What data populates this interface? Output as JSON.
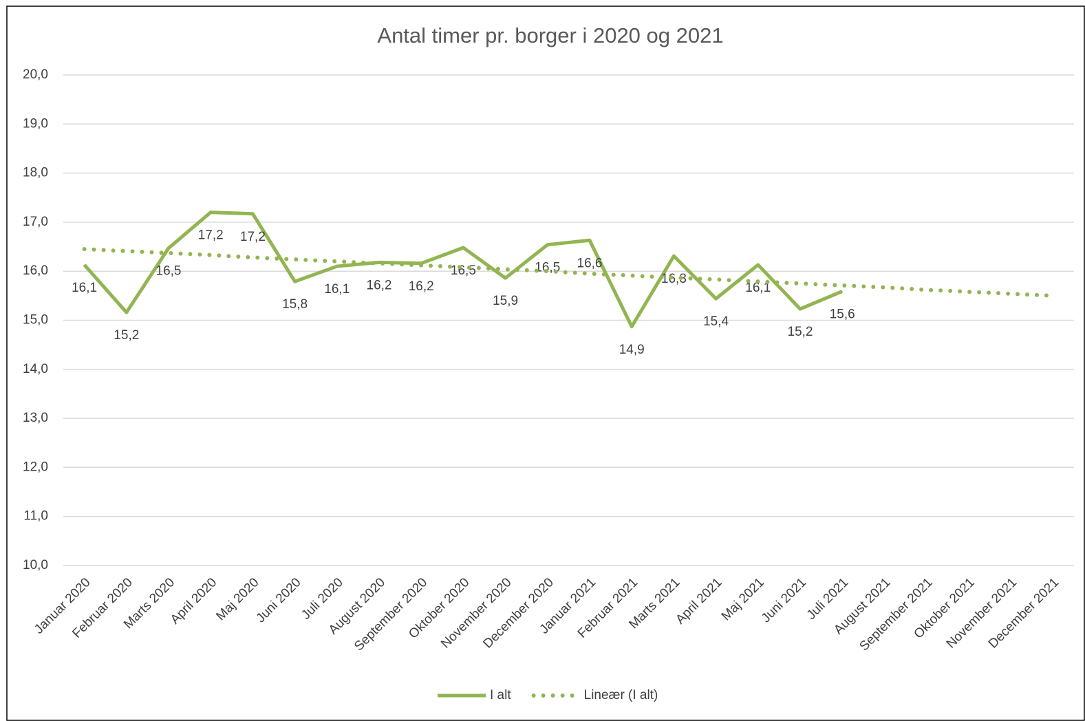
{
  "chart_data": {
    "type": "line",
    "title": "Antal timer pr. borger i 2020 og 2021",
    "categories": [
      "Januar 2020",
      "Februar 2020",
      "Marts 2020",
      "April 2020",
      "Maj 2020",
      "Juni 2020",
      "Juli 2020",
      "August 2020",
      "September 2020",
      "Oktober 2020",
      "November 2020",
      "December 2020",
      "Januar 2021",
      "Februar 2021",
      "Marts 2021",
      "April 2021",
      "Maj 2021",
      "Juni 2021",
      "Juli 2021",
      "August 2021",
      "September 2021",
      "Oktober 2021",
      "November 2021",
      "December 2021"
    ],
    "series": [
      {
        "name": "I alt",
        "color": "#92b552",
        "dash": "solid",
        "values": [
          16.13,
          15.16,
          16.47,
          17.2,
          17.17,
          15.79,
          16.1,
          16.18,
          16.16,
          16.48,
          15.86,
          16.54,
          16.63,
          14.87,
          16.31,
          15.44,
          16.13,
          15.23,
          15.59,
          null,
          null,
          null,
          null,
          null
        ],
        "value_labels": [
          "16,1",
          "15,2",
          "16,5",
          "17,2",
          "17,2",
          "15,8",
          "16,1",
          "16,2",
          "16,2",
          "16,5",
          "15,9",
          "16,5",
          "16,6",
          "14,9",
          "16,3",
          "15,4",
          "16,1",
          "15,2",
          "15,6",
          null,
          null,
          null,
          null,
          null
        ]
      },
      {
        "name": "Lineær (I alt)",
        "color": "#92b552",
        "dash": "dotted",
        "values": [
          16.45,
          16.41,
          16.37,
          16.33,
          16.28,
          16.24,
          16.2,
          16.16,
          16.12,
          16.08,
          16.04,
          16.0,
          15.95,
          15.91,
          15.87,
          15.83,
          15.79,
          15.75,
          15.71,
          15.67,
          15.62,
          15.58,
          15.54,
          15.5
        ]
      }
    ],
    "ylim": [
      10,
      20
    ],
    "yticks": [
      {
        "value": 10,
        "label": "10,0"
      },
      {
        "value": 11,
        "label": "11,0"
      },
      {
        "value": 12,
        "label": "12,0"
      },
      {
        "value": 13,
        "label": "13,0"
      },
      {
        "value": 14,
        "label": "14,0"
      },
      {
        "value": 15,
        "label": "15,0"
      },
      {
        "value": 16,
        "label": "16,0"
      },
      {
        "value": 17,
        "label": "17,0"
      },
      {
        "value": 18,
        "label": "18,0"
      },
      {
        "value": 19,
        "label": "19,0"
      },
      {
        "value": 20,
        "label": "20,0"
      }
    ],
    "grid": true,
    "legend": "bottom"
  }
}
